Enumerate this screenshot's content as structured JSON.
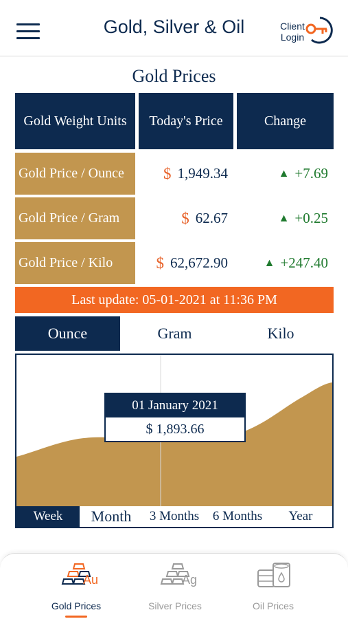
{
  "header": {
    "title": "Gold, Silver & Oil",
    "client_login": "Client Login",
    "menu_icon": "hamburger-menu-icon",
    "login_icon": "key-icon"
  },
  "section_title": "Gold Prices",
  "table": {
    "headers": [
      "Gold Weight Units",
      "Today's Price",
      "Change"
    ],
    "rows": [
      {
        "unit": "Gold Price / Ounce",
        "currency": "$",
        "price": "1,949.34",
        "change": "+7.69"
      },
      {
        "unit": "Gold Price / Gram",
        "currency": "$",
        "price": "62.67",
        "change": "+0.25"
      },
      {
        "unit": "Gold Price / Kilo",
        "currency": "$",
        "price": "62,672.90",
        "change": "+247.40"
      }
    ]
  },
  "last_update": "Last update: 05-01-2021 at 11:36 PM",
  "unit_tabs": [
    "Ounce",
    "Gram",
    "Kilo"
  ],
  "selected_unit": "Ounce",
  "tooltip": {
    "date": "01 January 2021",
    "value": "$ 1,893.66"
  },
  "range_tabs": [
    "Week",
    "Month",
    "3 Months",
    "6 Months",
    "Year"
  ],
  "selected_range": "Week",
  "bottom_nav": [
    {
      "label": "Gold Prices",
      "icon": "gold-bars-icon",
      "symbol": "Au",
      "active": true
    },
    {
      "label": "Silver Prices",
      "icon": "silver-bars-icon",
      "symbol": "Ag",
      "active": false
    },
    {
      "label": "Oil Prices",
      "icon": "oil-barrels-icon",
      "active": false
    }
  ],
  "colors": {
    "navy": "#0d2a4f",
    "gold": "#c2964f",
    "orange": "#f26722",
    "green": "#1f7a2e",
    "inactive": "#9a9a9a"
  }
}
